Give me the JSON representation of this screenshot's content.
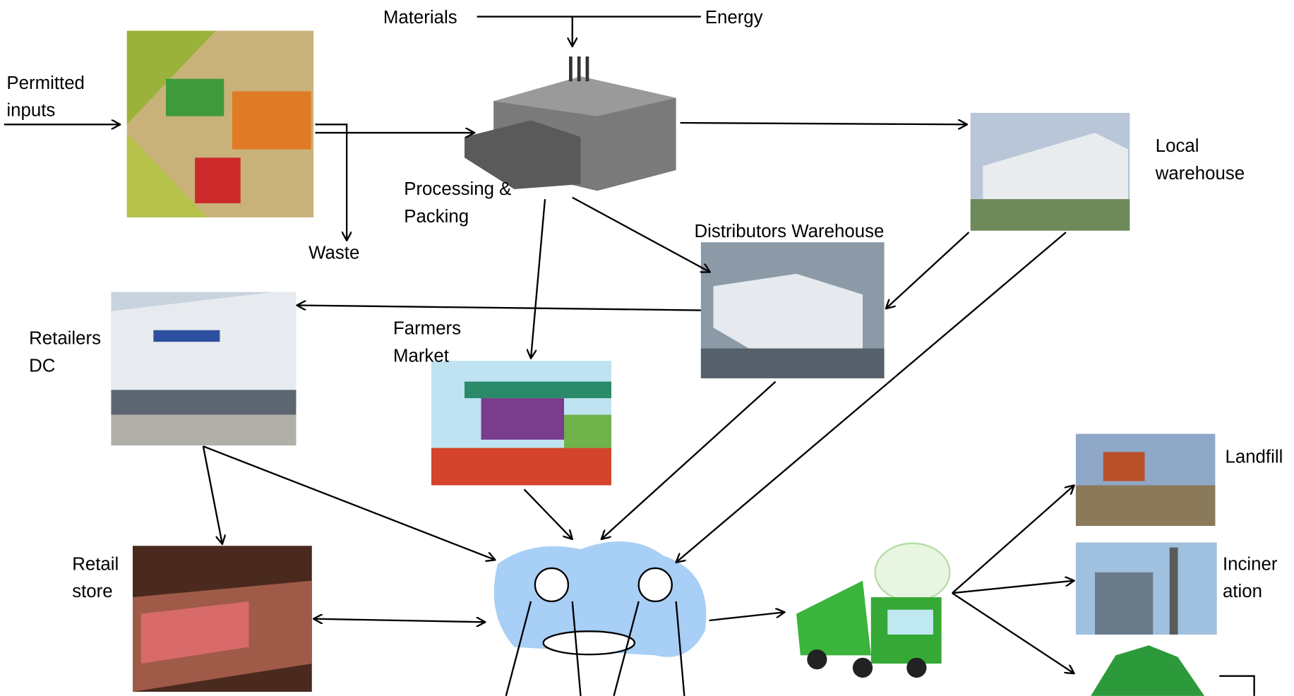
{
  "nodes": [
    {
      "lines": [
        "Permitted",
        "inputs"
      ]
    },
    {
      "lines": [
        "Materials"
      ]
    },
    {
      "lines": [
        "Energy"
      ]
    },
    {
      "lines": [
        "Waste"
      ]
    },
    {
      "lines": [
        "Processing &",
        "Packing"
      ]
    },
    {
      "lines": [
        "Local",
        " warehouse"
      ]
    },
    {
      "lines": [
        "Distributors Warehouse"
      ]
    },
    {
      "lines": [
        "Retailers",
        "DC"
      ]
    },
    {
      "lines": [
        "Farmers",
        "Market"
      ]
    },
    {
      "lines": [
        "Retail",
        "store"
      ]
    },
    {
      "lines": [
        "Landfill"
      ]
    },
    {
      "lines": [
        "Inciner",
        "ation"
      ]
    }
  ]
}
